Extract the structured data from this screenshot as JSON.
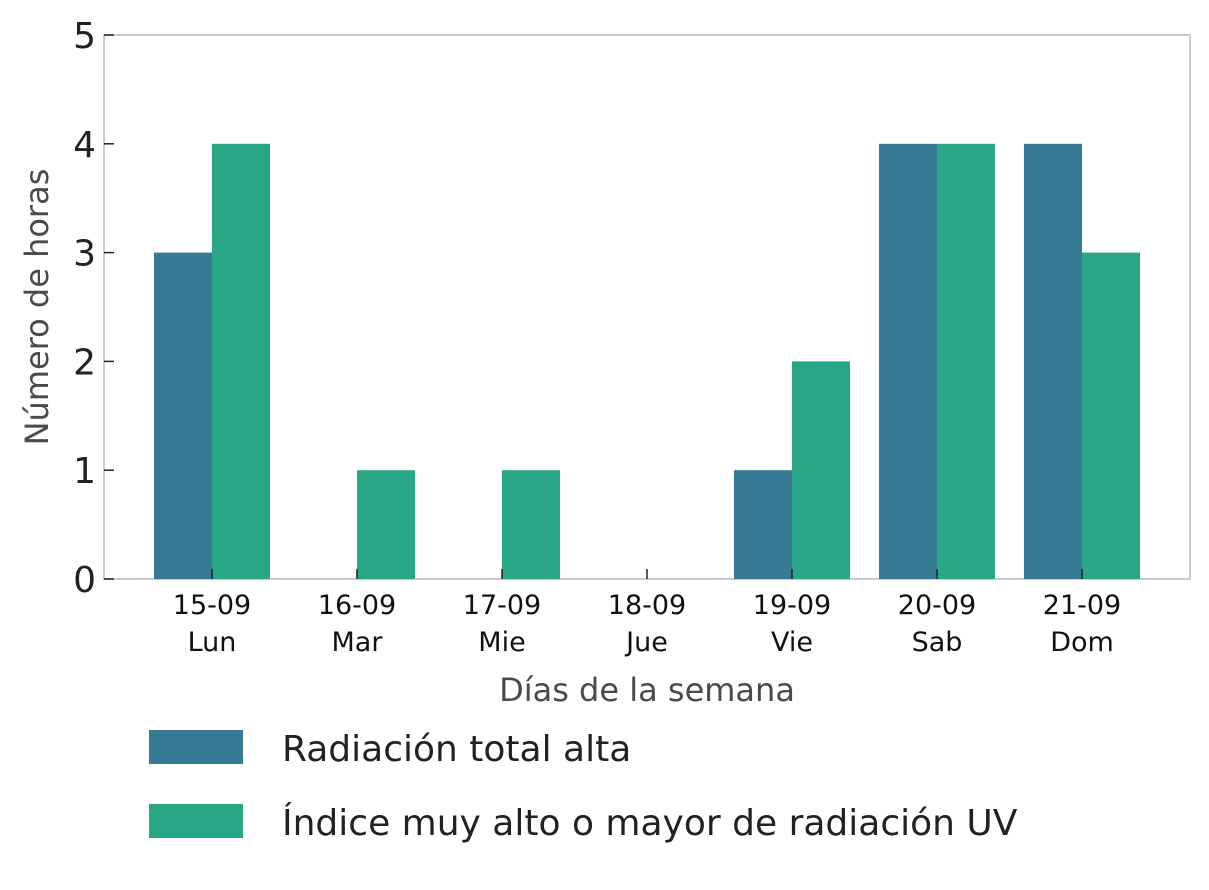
{
  "chart_data": {
    "type": "bar",
    "categories": [
      [
        "15-09",
        "Lun"
      ],
      [
        "16-09",
        "Mar"
      ],
      [
        "17-09",
        "Mie"
      ],
      [
        "18-09",
        "Jue"
      ],
      [
        "19-09",
        "Vie"
      ],
      [
        "20-09",
        "Sab"
      ],
      [
        "21-09",
        "Dom"
      ]
    ],
    "series": [
      {
        "name": "Radiación total alta",
        "values": [
          3,
          0,
          0,
          0,
          1,
          4,
          4
        ],
        "color": "#377a94"
      },
      {
        "name": "Índice muy alto o mayor de radiación UV",
        "values": [
          4,
          1,
          1,
          0,
          2,
          4,
          3
        ],
        "color": "#29a684"
      }
    ],
    "title": "",
    "xlabel": "Días de la semana",
    "ylabel": "Número de horas",
    "ylim": [
      0,
      5
    ],
    "yticks": [
      0,
      1,
      2,
      3,
      4,
      5
    ],
    "grid": false,
    "legend": "bottom-left"
  }
}
